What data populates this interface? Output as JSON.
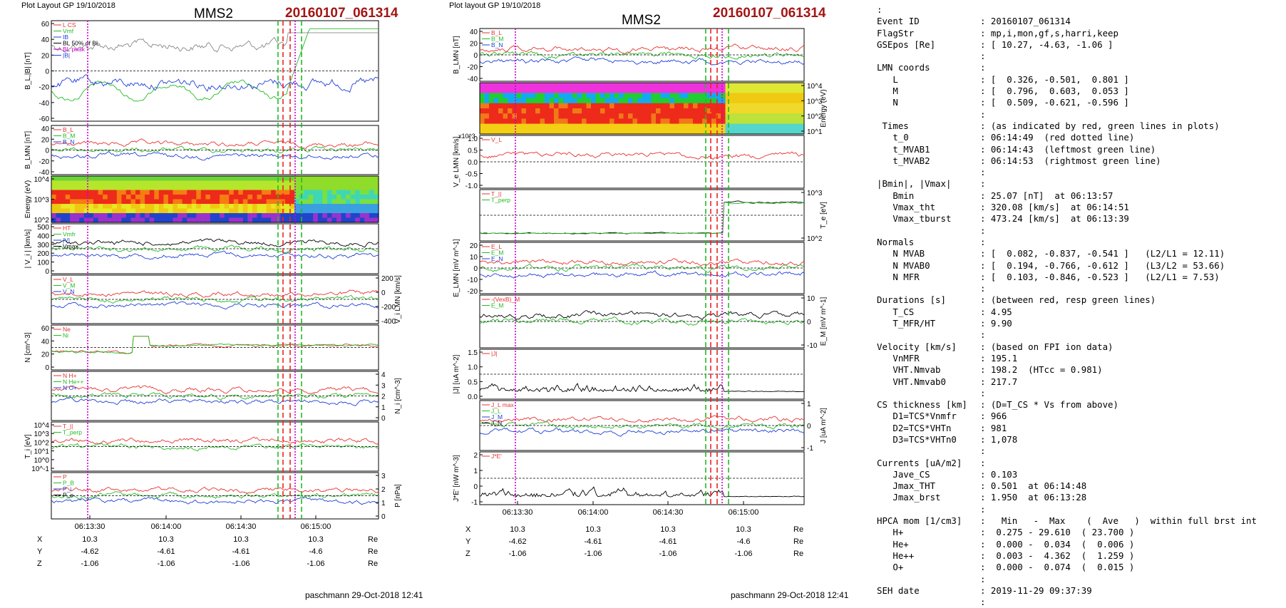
{
  "left_header": {
    "layout_note": "Plot Layout GP 19/10/2018",
    "spacecraft": "MMS2",
    "event": "20160107_061314",
    "footer": "paschmann 29-Oct-2018 12:41"
  },
  "mid_header": {
    "layout_note": "Plot layout GP 19/10/2018",
    "spacecraft": "MMS2",
    "event": "20160107_061314",
    "footer": "paschmann 29-Oct-2018 12:41"
  },
  "colors": {
    "event_red": "#a31515",
    "green_line": "#22bb22",
    "red_line": "#ee2222",
    "magenta_line": "#cc00cc",
    "blue": "#1f3fd8",
    "black": "#000000",
    "gray": "#888888"
  },
  "chart_data": [
    {
      "type": "line",
      "group": "left",
      "time_ticks": [
        "06:13:30",
        "06:14:00",
        "06:14:30",
        "06:15:00"
      ],
      "ephemeris": {
        "rows": [
          {
            "label": "X",
            "values": [
              "10.3",
              "10.3",
              "10.3",
              "10.3"
            ],
            "unit": "Re"
          },
          {
            "label": "Y",
            "values": [
              "-4.62",
              "-4.61",
              "-4.61",
              "-4.6"
            ],
            "unit": "Re"
          },
          {
            "label": "Z",
            "values": [
              "-1.06",
              "-1.06",
              "-1.06",
              "-1.06"
            ],
            "unit": "Re"
          }
        ]
      },
      "panels": [
        {
          "id": "bl",
          "ylabel": "B_L,|B| [nT]",
          "yticks": [
            "60",
            "40",
            "20",
            "0",
            "-20",
            "-40",
            "-60"
          ],
          "ylim": [
            -60,
            60
          ],
          "legend": [
            "L CS",
            "Vmf",
            "IB",
            "BL 50% of BL",
            "BL peak",
            "|B|"
          ]
        },
        {
          "id": "blmn",
          "ylabel": "B_LMN [nT]",
          "yticks": [
            "40",
            "20",
            "0",
            "-20",
            "-40"
          ],
          "ylim": [
            -50,
            45
          ],
          "legend": [
            "B_L",
            "B_M",
            "B_N"
          ]
        },
        {
          "id": "spec",
          "type": "heatmap",
          "ylabel": "Energy (eV)",
          "yticks": [
            "10^4",
            "10^3",
            "10^2"
          ]
        },
        {
          "id": "vi",
          "ylabel": "| V_i | [km/s]",
          "yticks": [
            "500",
            "400",
            "300",
            "200",
            "100",
            "0"
          ],
          "ylim": [
            0,
            500
          ],
          "legend": [
            "HT",
            "Vmfr",
            "|V|",
            "Vmax"
          ]
        },
        {
          "id": "vilmn",
          "ylabel": "V_i LMN [km/s]",
          "yticks_right": [
            "200",
            "0",
            "-200",
            "-400"
          ],
          "ylim": [
            -450,
            300
          ],
          "legend": [
            "V_L",
            "V_M",
            "V_N"
          ]
        },
        {
          "id": "n",
          "ylabel": "N [cm^-3]",
          "yticks": [
            "60",
            "40",
            "20",
            "0"
          ],
          "ylim": [
            0,
            70
          ],
          "legend": [
            "Ne",
            "Ni"
          ]
        },
        {
          "id": "hpca",
          "ylabel": "N_i [cm^-3]",
          "yticks_right": [
            "4",
            "3",
            "2",
            "1",
            "0"
          ],
          "ylim": [
            0,
            4.2
          ],
          "legend": [
            "N H+",
            "N He++",
            "N O+"
          ]
        },
        {
          "id": "ti",
          "ylabel": "T_i [eV]",
          "yticks": [
            "10^4",
            "10^3",
            "10^2",
            "10^1",
            "10^0",
            "10^-1"
          ],
          "legend": [
            "T_||",
            "T_perp"
          ]
        },
        {
          "id": "p",
          "ylabel": "P [nPa]",
          "yticks_right": [
            "3",
            "2",
            "1",
            "0"
          ],
          "ylim": [
            0,
            3
          ],
          "legend": [
            "P",
            "P_B",
            "P_i",
            "P_e"
          ]
        }
      ]
    },
    {
      "type": "line",
      "group": "middle",
      "time_ticks": [
        "06:13:30",
        "06:14:00",
        "06:14:30",
        "06:15:00"
      ],
      "ephemeris": {
        "rows": [
          {
            "label": "X",
            "values": [
              "10.3",
              "10.3",
              "10.3",
              "10.3"
            ],
            "unit": "Re"
          },
          {
            "label": "Y",
            "values": [
              "-4.62",
              "-4.61",
              "-4.61",
              "-4.6"
            ],
            "unit": "Re"
          },
          {
            "label": "Z",
            "values": [
              "-1.06",
              "-1.06",
              "-1.06",
              "-1.06"
            ],
            "unit": "Re"
          }
        ]
      },
      "panels": [
        {
          "id": "blmn2",
          "ylabel": "B_LMN [nT]",
          "yticks": [
            "40",
            "20",
            "0",
            "-20",
            "-40"
          ],
          "ylim": [
            -50,
            45
          ],
          "legend": [
            "B_L",
            "B_M",
            "B_N"
          ]
        },
        {
          "id": "espec",
          "type": "heatmap",
          "ylabel": "Energy (eV)",
          "yticks_right": [
            "10^4",
            "10^3",
            "10^2",
            "10^1"
          ]
        },
        {
          "id": "ve",
          "ylabel": "V_e LMN [km/s]",
          "scale_note": "x10^3",
          "yticks": [
            "1.0",
            "0.5",
            "0.0",
            "-0.5",
            "-1.0"
          ],
          "ylim": [
            -1.2,
            1.2
          ],
          "legend": [
            "V_L"
          ]
        },
        {
          "id": "te",
          "ylabel": "T_e [eV]",
          "yticks_right": [
            "10^3",
            "10^2"
          ],
          "legend": [
            "T_||",
            "T_perp"
          ]
        },
        {
          "id": "elmn",
          "ylabel": "E_LMN [mV m^-1]",
          "yticks": [
            "20",
            "10",
            "0",
            "-10",
            "-20"
          ],
          "ylim": [
            -25,
            22
          ],
          "legend": [
            "E_L",
            "E_M",
            "E_N"
          ]
        },
        {
          "id": "em",
          "ylabel": "E_M [mV m^-1]",
          "yticks_right": [
            "10",
            "0",
            "-10"
          ],
          "ylim": [
            -14,
            14
          ],
          "legend": [
            "-(VexB)_M",
            "E_M"
          ]
        },
        {
          "id": "jabs",
          "ylabel": "|J| [uA m^-2]",
          "yticks": [
            "1.5",
            "1.0",
            "0.5",
            "0.0"
          ],
          "ylim": [
            0,
            1.7
          ],
          "legend": [
            "|J|"
          ]
        },
        {
          "id": "jlmn",
          "ylabel": "J [uA m^-2]",
          "yticks_right": [
            "1",
            "0",
            "-1"
          ],
          "ylim": [
            -1.5,
            1.5
          ],
          "legend": [
            "J_L max",
            "J_L",
            "J_M",
            "J_N"
          ]
        },
        {
          "id": "jdote",
          "ylabel": "J*E' [nW m^-3]",
          "yticks": [
            "2",
            "1",
            "0",
            "-1"
          ],
          "ylim": [
            -2,
            2.6
          ],
          "legend": [
            "J*E'"
          ]
        }
      ]
    }
  ],
  "right_panel": {
    "rows": [
      [
        ":",
        ""
      ],
      [
        "Event ID",
        ": 20160107_061314"
      ],
      [
        "FlagStr",
        ": mp,i,mon,gf,s,harri,keep"
      ],
      [
        "GSEpos [Re]",
        ": [ 10.27, -4.63, -1.06 ]"
      ],
      [
        "",
        ":"
      ],
      [
        "LMN coords",
        ":"
      ],
      [
        "   L",
        ": [  0.326, -0.501,  0.801 ]"
      ],
      [
        "   M",
        ": [  0.796,  0.603,  0.053 ]"
      ],
      [
        "   N",
        ": [  0.509, -0.621, -0.596 ]"
      ],
      [
        "",
        ":"
      ],
      [
        " Times",
        ": (as indicated by red, green lines in plots)"
      ],
      [
        "   t_0",
        ": 06:14:49  (red dotted line)"
      ],
      [
        "   t_MVAB1",
        ": 06:14:43  (leftmost green line)"
      ],
      [
        "   t_MVAB2",
        ": 06:14:53  (rightmost green line)"
      ],
      [
        "",
        ":"
      ],
      [
        "|Bmin|, |Vmax|",
        ":"
      ],
      [
        "   Bmin",
        ": 25.07 [nT]  at 06:13:57"
      ],
      [
        "   Vmax_tht",
        ": 320.08 [km/s]  at 06:14:51"
      ],
      [
        "   Vmax_tburst",
        ": 473.24 [km/s]  at 06:13:39"
      ],
      [
        "",
        ":"
      ],
      [
        "Normals",
        ":"
      ],
      [
        "   N MVAB",
        ": [  0.082, -0.837, -0.541 ]   (L2/L1 = 12.11)"
      ],
      [
        "   N MVAB0",
        ": [  0.194, -0.766, -0.612 ]   (L3/L2 = 53.66)"
      ],
      [
        "   N MFR",
        ": [  0.103, -0.846, -0.523 ]   (L2/L1 = 7.53)"
      ],
      [
        "",
        ":"
      ],
      [
        "Durations [s]",
        ": (between red, resp green lines)"
      ],
      [
        "   T_CS",
        ": 4.95"
      ],
      [
        "   T_MFR/HT",
        ": 9.90"
      ],
      [
        "",
        ":"
      ],
      [
        "Velocity [km/s]",
        ": (based on FPI ion data)"
      ],
      [
        "   VnMFR",
        ": 195.1"
      ],
      [
        "   VHT.Nmvab",
        ": 198.2  (HTcc = 0.981)"
      ],
      [
        "   VHT.Nmvab0",
        ": 217.7"
      ],
      [
        "",
        ":"
      ],
      [
        "CS thickness [km]",
        ": (D=T_CS * Vs from above)"
      ],
      [
        "   D1=TCS*Vnmfr",
        ": 966"
      ],
      [
        "   D2=TCS*VHTn",
        ": 981"
      ],
      [
        "   D3=TCS*VHTn0",
        ": 1,078"
      ],
      [
        "",
        ":"
      ],
      [
        "Currents [uA/m2]",
        ":"
      ],
      [
        "   Jave_CS",
        ": 0.103"
      ],
      [
        "   Jmax_THT",
        ": 0.501  at 06:14:48"
      ],
      [
        "   Jmax_brst",
        ": 1.950  at 06:13:28"
      ],
      [
        "",
        ":"
      ],
      [
        "HPCA mom [1/cm3]",
        ":   Min   -  Max    (  Ave   )  within full brst int"
      ],
      [
        "   H+",
        ":  0.275 - 29.610  ( 23.700 )"
      ],
      [
        "   He+",
        ":  0.000 -  0.034  (  0.006 )"
      ],
      [
        "   He++",
        ":  0.003 -  4.362  (  1.259 )"
      ],
      [
        "   O+",
        ":  0.000 -  0.074  (  0.015 )"
      ],
      [
        "",
        ":"
      ],
      [
        "SEH date",
        ": 2019-11-29 09:37:39"
      ],
      [
        "",
        ":"
      ]
    ]
  }
}
